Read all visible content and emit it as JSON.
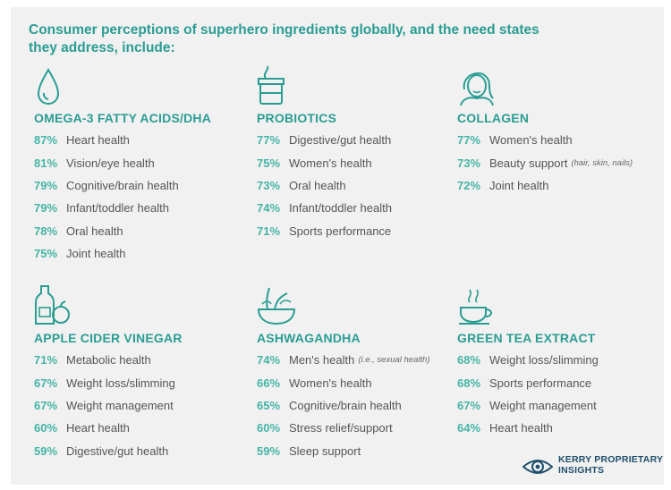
{
  "title": "Consumer perceptions of superhero ingredients globally, and the need states they address, include:",
  "colors": {
    "accent": "#2a9d93",
    "percent": "#45b5a6",
    "text": "#555555",
    "brand": "#1f4f6b",
    "panel": "#f1f1f1"
  },
  "ingredients": [
    {
      "name": "OMEGA-3 FATTY ACIDS/DHA",
      "icon": "drop-icon",
      "items": [
        {
          "pct": "87%",
          "label": "Heart health"
        },
        {
          "pct": "81%",
          "label": "Vision/eye health"
        },
        {
          "pct": "79%",
          "label": "Cognitive/brain health"
        },
        {
          "pct": "79%",
          "label": "Infant/toddler health"
        },
        {
          "pct": "78%",
          "label": "Oral health"
        },
        {
          "pct": "75%",
          "label": "Joint health"
        }
      ]
    },
    {
      "name": "PROBIOTICS",
      "icon": "yogurt-jar-icon",
      "items": [
        {
          "pct": "77%",
          "label": "Digestive/gut health"
        },
        {
          "pct": "75%",
          "label": "Women's health"
        },
        {
          "pct": "73%",
          "label": "Oral health"
        },
        {
          "pct": "74%",
          "label": "Infant/toddler health"
        },
        {
          "pct": "71%",
          "label": "Sports performance"
        }
      ]
    },
    {
      "name": "COLLAGEN",
      "icon": "woman-face-icon",
      "items": [
        {
          "pct": "77%",
          "label": "Women's health"
        },
        {
          "pct": "73%",
          "label": "Beauty support",
          "note": "(hair, skin, nails)"
        },
        {
          "pct": "72%",
          "label": "Joint health"
        }
      ]
    },
    {
      "name": "APPLE CIDER VINEGAR",
      "icon": "vinegar-bottle-apple-icon",
      "items": [
        {
          "pct": "71%",
          "label": "Metabolic health"
        },
        {
          "pct": "67%",
          "label": "Weight loss/slimming"
        },
        {
          "pct": "67%",
          "label": "Weight management"
        },
        {
          "pct": "60%",
          "label": "Heart health"
        },
        {
          "pct": "59%",
          "label": "Digestive/gut health"
        }
      ]
    },
    {
      "name": "ASHWAGANDHA",
      "icon": "herb-bowl-icon",
      "items": [
        {
          "pct": "74%",
          "label": "Men's health",
          "note": "(i.e., sexual health)"
        },
        {
          "pct": "66%",
          "label": "Women's health"
        },
        {
          "pct": "65%",
          "label": "Cognitive/brain health"
        },
        {
          "pct": "60%",
          "label": "Stress relief/support"
        },
        {
          "pct": "59%",
          "label": "Sleep support"
        }
      ]
    },
    {
      "name": "GREEN TEA EXTRACT",
      "icon": "tea-cup-icon",
      "items": [
        {
          "pct": "68%",
          "label": "Weight loss/slimming"
        },
        {
          "pct": "68%",
          "label": "Sports performance"
        },
        {
          "pct": "67%",
          "label": "Weight management"
        },
        {
          "pct": "64%",
          "label": "Heart health"
        }
      ]
    }
  ],
  "logo": {
    "line1": "KERRY PROPRIETARY",
    "line2": "INSIGHTS",
    "icon": "eye-icon"
  }
}
